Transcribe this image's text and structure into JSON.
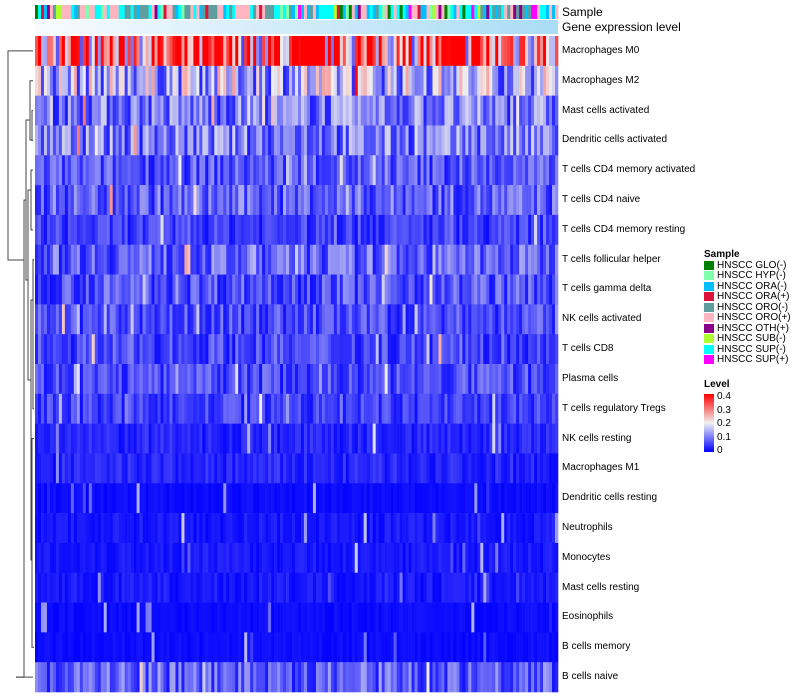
{
  "chart_data": {
    "type": "heatmap",
    "annotation_labels": [
      "Sample",
      "Gene expression level"
    ],
    "rows": [
      "Macrophages M0",
      "Macrophages M2",
      "Mast cells activated",
      "Dendritic cells activated",
      "T cells CD4 memory activated",
      "T cells CD4 naive",
      "T cells CD4 memory resting",
      "T cells follicular helper",
      "T cells gamma delta",
      "NK cells activated",
      "T cells CD8",
      "Plasma cells",
      "T cells regulatory  Tregs",
      "NK cells resting",
      "Macrophages M1",
      "Dendritic cells resting",
      "Neutrophils",
      "Monocytes",
      "Mast cells resting",
      "Eosinophils",
      "B cells memory",
      "B cells naive"
    ],
    "row_mean_levels": [
      0.3,
      0.15,
      0.1,
      0.1,
      0.07,
      0.08,
      0.05,
      0.08,
      0.07,
      0.06,
      0.06,
      0.06,
      0.05,
      0.03,
      0.03,
      0.01,
      0.02,
      0.02,
      0.02,
      0.01,
      0.01,
      0.08
    ],
    "n_samples": 175,
    "sample_legend": {
      "title": "Sample",
      "items": [
        {
          "label": "HNSCC GLO(-)",
          "color": "#007F00"
        },
        {
          "label": "HNSCC HYP(-)",
          "color": "#7FFFAA"
        },
        {
          "label": "HNSCC ORA(-)",
          "color": "#00BFFF"
        },
        {
          "label": "HNSCC ORA(+)",
          "color": "#DC143C"
        },
        {
          "label": "HNSCC ORO(-)",
          "color": "#5F9EA0"
        },
        {
          "label": "HNSCC ORO(+)",
          "color": "#FFB6C1"
        },
        {
          "label": "HNSCC OTH(+)",
          "color": "#8B008B"
        },
        {
          "label": "HNSCC SUB(-)",
          "color": "#ADFF2F"
        },
        {
          "label": "HNSCC SUP(-)",
          "color": "#00FFFF"
        },
        {
          "label": "HNSCC SUP(+)",
          "color": "#FF00FF"
        }
      ]
    },
    "level_legend": {
      "title": "Level",
      "ticks": [
        "0.4",
        "0.3",
        "0.2",
        "0.1",
        "0"
      ],
      "range": [
        0,
        0.4
      ],
      "colors": [
        "#0000FF",
        "#F0F0F0",
        "#FF0000"
      ]
    }
  }
}
